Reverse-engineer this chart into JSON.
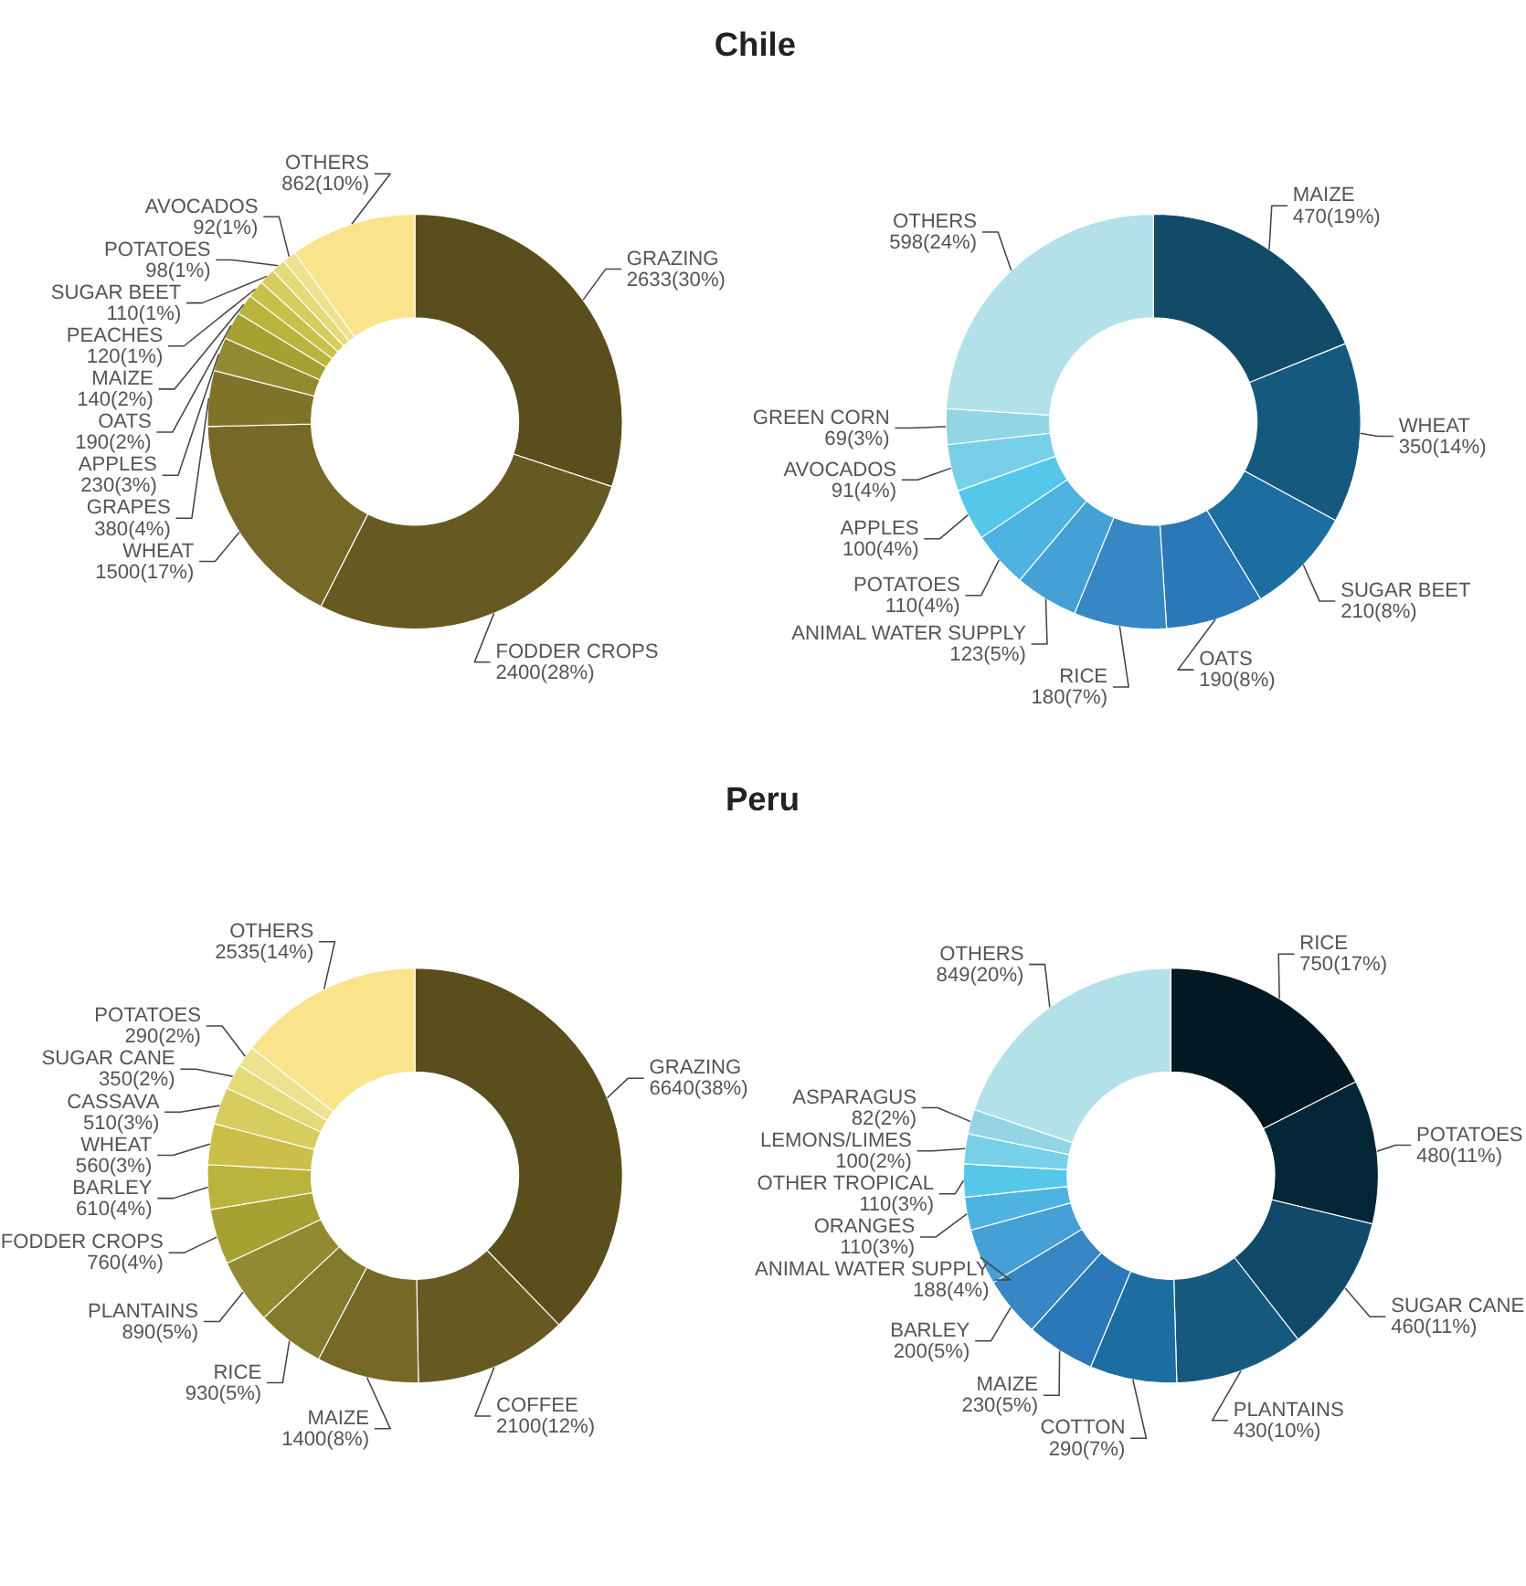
{
  "chart_data": [
    {
      "type": "donut",
      "title": "Chile",
      "categories": [
        "GRAZING",
        "FODDER CROPS",
        "WHEAT",
        "GRAPES",
        "APPLES",
        "OATS",
        "MAIZE",
        "PEACHES",
        "SUGAR BEET",
        "POTATOES",
        "AVOCADOS",
        "OTHERS"
      ],
      "values": [
        2633,
        2400,
        1500,
        380,
        230,
        190,
        140,
        120,
        110,
        98,
        92,
        862
      ],
      "value_labels": [
        "2633(30%)",
        "2400(28%)",
        "1500(17%)",
        "380(4%)",
        "230(3%)",
        "190(2%)",
        "140(2%)",
        "120(1%)",
        "110(1%)",
        "98(1%)",
        "92(1%)",
        "862(10%)"
      ],
      "colors": [
        "#5a4e1c",
        "#665a22",
        "#766826",
        "#7f7329",
        "#928a30",
        "#a6a232",
        "#b8b43c",
        "#c9c04a",
        "#d7cd5e",
        "#e3da78",
        "#eee290",
        "#f9e48c"
      ]
    },
    {
      "type": "donut",
      "categories": [
        "MAIZE",
        "WHEAT",
        "SUGAR BEET",
        "OATS",
        "RICE",
        "ANIMAL WATER SUPPLY",
        "POTATOES",
        "APPLES",
        "AVOCADOS",
        "GREEN CORN",
        "OTHERS"
      ],
      "values": [
        470,
        350,
        210,
        190,
        180,
        123,
        110,
        100,
        91,
        69,
        598
      ],
      "value_labels": [
        "470(19%)",
        "350(14%)",
        "210(8%)",
        "190(8%)",
        "180(7%)",
        "123(5%)",
        "110(4%)",
        "100(4%)",
        "91(4%)",
        "69(3%)",
        "598(24%)"
      ],
      "colors": [
        "#114b68",
        "#16597f",
        "#1c6da0",
        "#2a78b8",
        "#3787c4",
        "#45a0d6",
        "#4eb3e0",
        "#55c8ea",
        "#77d0e8",
        "#93d5e5",
        "#b3e1e9"
      ]
    },
    {
      "type": "donut",
      "title": "Peru",
      "categories": [
        "GRAZING",
        "COFFEE",
        "MAIZE",
        "RICE",
        "PLANTAINS",
        "FODDER CROPS",
        "BARLEY",
        "WHEAT",
        "CASSAVA",
        "SUGAR CANE",
        "POTATOES",
        "OTHERS"
      ],
      "values": [
        6640,
        2100,
        1400,
        930,
        890,
        760,
        610,
        560,
        510,
        350,
        290,
        2535
      ],
      "value_labels": [
        "6640(38%)",
        "2100(12%)",
        "1400(8%)",
        "930(5%)",
        "890(5%)",
        "760(4%)",
        "610(4%)",
        "560(3%)",
        "510(3%)",
        "350(2%)",
        "290(2%)",
        "2535(14%)"
      ],
      "colors": [
        "#5a4e1c",
        "#665a22",
        "#766826",
        "#827a2c",
        "#928a30",
        "#a6a232",
        "#b8b43c",
        "#cbbf4a",
        "#d7cd5e",
        "#e3da78",
        "#eee290",
        "#f9e48c"
      ]
    },
    {
      "type": "donut",
      "categories": [
        "RICE",
        "POTATOES",
        "SUGAR CANE",
        "PLANTAINS",
        "COTTON",
        "MAIZE",
        "BARLEY",
        "ANIMAL WATER SUPPLY",
        "ORANGES",
        "OTHER TROPICAL",
        "LEMONS/LIMES",
        "ASPARAGUS",
        "OTHERS"
      ],
      "values": [
        750,
        480,
        460,
        430,
        290,
        230,
        200,
        188,
        110,
        110,
        100,
        82,
        849
      ],
      "value_labels": [
        "750(17%)",
        "480(11%)",
        "460(11%)",
        "430(10%)",
        "290(7%)",
        "230(5%)",
        "200(5%)",
        "188(4%)",
        "110(3%)",
        "110(3%)",
        "100(2%)",
        "82(2%)",
        "849(20%)"
      ],
      "colors": [
        "#021822",
        "#042637",
        "#104a68",
        "#16597f",
        "#1c6da0",
        "#2a78b8",
        "#3787c4",
        "#45a0d6",
        "#4eb3e0",
        "#55c8ea",
        "#77d0e8",
        "#93d5e5",
        "#b3e1e9"
      ]
    }
  ]
}
